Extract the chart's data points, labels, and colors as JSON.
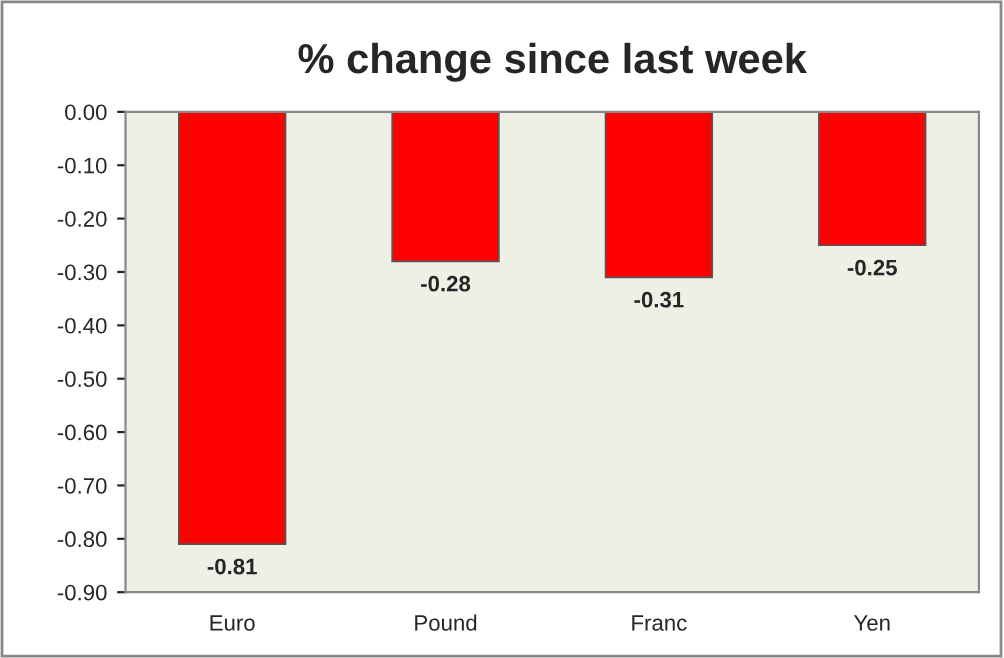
{
  "chart_data": {
    "type": "bar",
    "title": "% change since last week",
    "categories": [
      "Euro",
      "Pound",
      "Franc",
      "Yen"
    ],
    "values": [
      -0.81,
      -0.28,
      -0.31,
      -0.25
    ],
    "color": "#ff0000",
    "ylim": [
      -0.9,
      0.0
    ],
    "yticks": [
      {
        "value": 0.0,
        "label": "0.00"
      },
      {
        "value": -0.1,
        "label": "-0.10"
      },
      {
        "value": -0.2,
        "label": "-0.20"
      },
      {
        "value": -0.3,
        "label": "-0.30"
      },
      {
        "value": -0.4,
        "label": "-0.40"
      },
      {
        "value": -0.5,
        "label": "-0.50"
      },
      {
        "value": -0.6,
        "label": "-0.60"
      },
      {
        "value": -0.7,
        "label": "-0.70"
      },
      {
        "value": -0.8,
        "label": "-0.80"
      },
      {
        "value": -0.9,
        "label": "-0.90"
      }
    ],
    "data_labels": true,
    "grid": false,
    "legend": false
  }
}
